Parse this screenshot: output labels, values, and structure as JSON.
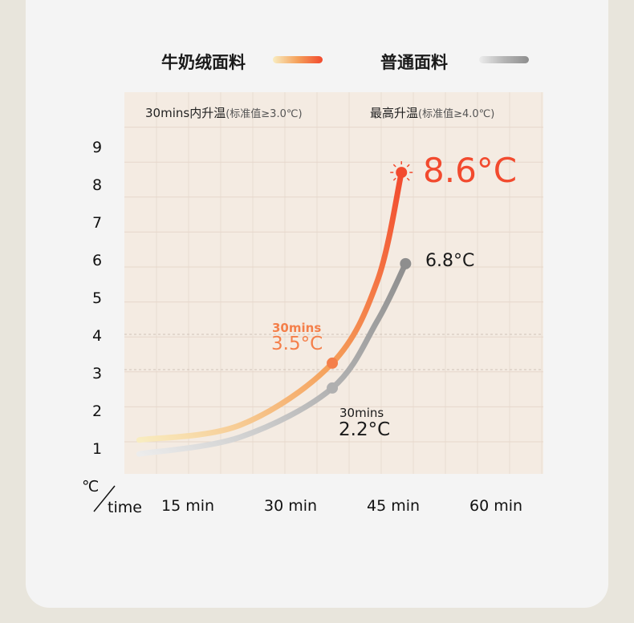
{
  "legend": [
    {
      "label": "牛奶绒面料",
      "colors": [
        "#f8ecc0",
        "#f5a05a",
        "#f24a2e"
      ]
    },
    {
      "label": "普通面料",
      "colors": [
        "#ececec",
        "#b5b5b5",
        "#8e8e8e"
      ]
    }
  ],
  "header": {
    "col1_main": "30mins内升温",
    "col1_note": "(标准值≥3.0℃)",
    "col2_main": "最高升温",
    "col2_note": "(标准值≥4.0℃)"
  },
  "chart_data": {
    "type": "line",
    "xlabel": "time",
    "ylabel": "℃",
    "x_ticks": [
      "15 min",
      "30 min",
      "45 min",
      "60 min"
    ],
    "x_tick_values": [
      15,
      30,
      45,
      60
    ],
    "y_ticks": [
      1,
      2,
      3,
      4,
      5,
      6,
      7,
      8,
      9
    ],
    "xlim": [
      5.7,
      66.8
    ],
    "ylim": [
      0.1,
      9.7
    ],
    "grid": true,
    "dashed_reference_lines": [
      3,
      4
    ],
    "legend_placement": "top",
    "series": [
      {
        "name": "牛奶绒面料",
        "color": "#f24a2e",
        "x": [
          7.9,
          22.7,
          36.1,
          42.7,
          46.2
        ],
        "y": [
          1.26,
          1.66,
          3.3,
          5.49,
          8.36
        ]
      },
      {
        "name": "普通面料",
        "color": "#8e8e8e",
        "x": [
          7.9,
          22.7,
          36.1,
          42.7,
          46.8
        ],
        "y": [
          0.89,
          1.34,
          2.64,
          4.43,
          5.94
        ]
      }
    ],
    "annotations": {
      "milk_30": {
        "caption": "30mins",
        "value": "3.5°C",
        "color": "#f47f4a"
      },
      "milk_max": {
        "value": "8.6°C",
        "color": "#f24a2e"
      },
      "normal_30": {
        "caption": "30mins",
        "value": "2.2°C",
        "color": "#1a1a1a"
      },
      "normal_max": {
        "value": "6.8°C",
        "color": "#1a1a1a"
      }
    }
  }
}
